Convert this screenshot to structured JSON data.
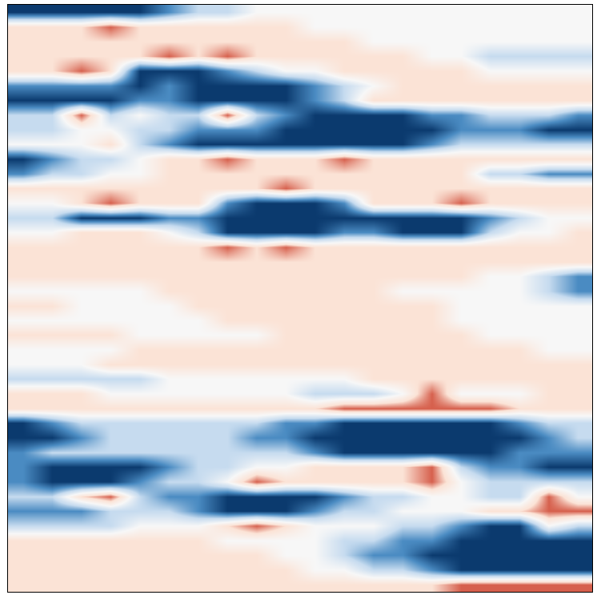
{
  "chart_data": {
    "type": "heatmap",
    "tick_labels": false,
    "zlim": [
      -2,
      3
    ],
    "cells": [
      [
        3,
        3,
        3,
        3,
        3,
        2,
        1,
        1,
        0,
        0,
        0,
        0,
        0,
        0,
        0,
        0,
        0,
        0,
        0,
        0
      ],
      [
        -1,
        -1,
        -1,
        -2,
        -1,
        -1,
        -1,
        -1,
        -1,
        -1,
        0,
        0,
        0,
        0,
        0,
        0,
        0,
        0,
        0,
        0
      ],
      [
        -1,
        -1,
        -1,
        -1,
        -1,
        -1,
        -1,
        -1,
        -1,
        -1,
        -1,
        -1,
        0,
        0,
        0,
        0,
        0,
        0,
        0,
        0
      ],
      [
        -1,
        -1,
        -1,
        -1,
        -1,
        -2,
        -1,
        -2,
        -1,
        -1,
        -1,
        -1,
        -1,
        -1,
        0,
        0,
        1,
        1,
        1,
        1
      ],
      [
        -1,
        -1,
        -2,
        -1,
        3,
        3,
        3,
        2,
        1,
        0,
        0,
        -1,
        -1,
        -1,
        -1,
        -1,
        0,
        0,
        0,
        0
      ],
      [
        2,
        2,
        2,
        2,
        3,
        2,
        3,
        3,
        3,
        3,
        2,
        1,
        0,
        -1,
        -1,
        -1,
        -1,
        -1,
        -1,
        -1
      ],
      [
        3,
        3,
        3,
        3,
        2,
        2,
        3,
        3,
        3,
        3,
        2,
        1,
        -1,
        -1,
        -1,
        -1,
        -1,
        -1,
        -1,
        -1
      ],
      [
        1,
        1,
        -2,
        1,
        0,
        1,
        1,
        -2,
        1,
        2,
        3,
        3,
        3,
        3,
        2,
        2,
        1,
        1,
        1,
        2
      ],
      [
        1,
        1,
        0,
        0,
        1,
        1,
        2,
        2,
        2,
        3,
        3,
        3,
        3,
        3,
        3,
        2,
        2,
        2,
        3,
        3
      ],
      [
        0,
        0,
        0,
        -1,
        1,
        2,
        3,
        3,
        3,
        3,
        3,
        3,
        3,
        3,
        2,
        1,
        1,
        1,
        1,
        1
      ],
      [
        3,
        2,
        1,
        1,
        0,
        -1,
        -1,
        -2,
        -1,
        -1,
        -1,
        -2,
        -1,
        -1,
        -1,
        -1,
        -1,
        -1,
        -1,
        -1
      ],
      [
        2,
        1,
        1,
        0,
        0,
        -1,
        -1,
        -1,
        -1,
        -1,
        -1,
        -1,
        -1,
        -1,
        -1,
        -1,
        1,
        1,
        2,
        2
      ],
      [
        -1,
        -1,
        -1,
        -1,
        -1,
        -1,
        -1,
        -1,
        -1,
        -2,
        -1,
        -1,
        -1,
        -1,
        -1,
        -1,
        -1,
        -1,
        -1,
        -1
      ],
      [
        0,
        0,
        -1,
        -2,
        -1,
        -1,
        -1,
        2,
        3,
        3,
        3,
        2,
        -1,
        -1,
        -1,
        -2,
        -1,
        -1,
        -1,
        -1
      ],
      [
        1,
        1,
        3,
        3,
        3,
        2,
        2,
        3,
        3,
        3,
        3,
        3,
        3,
        3,
        3,
        3,
        2,
        1,
        0,
        0
      ],
      [
        0,
        0,
        -1,
        -1,
        -1,
        0,
        1,
        3,
        3,
        3,
        3,
        2,
        2,
        3,
        3,
        3,
        1,
        0,
        0,
        -1
      ],
      [
        -1,
        -1,
        -1,
        -1,
        -1,
        -1,
        -1,
        -2,
        -1,
        -2,
        -1,
        -1,
        -1,
        -1,
        -1,
        -1,
        -1,
        -1,
        -1,
        -1
      ],
      [
        -1,
        -1,
        -1,
        -1,
        -1,
        -1,
        -1,
        -1,
        -1,
        -1,
        -1,
        -1,
        -1,
        -1,
        -1,
        -1,
        -1,
        -1,
        -1,
        -1
      ],
      [
        -1,
        -1,
        -1,
        -1,
        -1,
        -1,
        -1,
        -1,
        -1,
        -1,
        -1,
        -1,
        -1,
        -1,
        -1,
        -1,
        0,
        0,
        1,
        2
      ],
      [
        0,
        0,
        0,
        0,
        0,
        -1,
        -1,
        -1,
        -1,
        -1,
        -1,
        -1,
        -1,
        0,
        0,
        0,
        0,
        0,
        1,
        2
      ],
      [
        -1,
        -1,
        0,
        0,
        0,
        0,
        -1,
        -1,
        -1,
        -1,
        -1,
        -1,
        -1,
        -1,
        -1,
        0,
        0,
        0,
        0,
        0
      ],
      [
        0,
        0,
        0,
        0,
        0,
        0,
        0,
        -1,
        -1,
        -1,
        -1,
        -1,
        -1,
        -1,
        -1,
        0,
        0,
        0,
        0,
        0
      ],
      [
        -1,
        -1,
        -1,
        -1,
        0,
        0,
        0,
        0,
        0,
        -1,
        -1,
        -1,
        -1,
        -1,
        -1,
        -1,
        0,
        0,
        0,
        0
      ],
      [
        0,
        0,
        0,
        0,
        -1,
        -1,
        -1,
        -1,
        -1,
        -1,
        -1,
        -1,
        -1,
        -1,
        -1,
        -1,
        -1,
        -1,
        0,
        0
      ],
      [
        0,
        0,
        0,
        -1,
        -1,
        -1,
        -1,
        -1,
        -1,
        -1,
        -1,
        -1,
        -1,
        -1,
        -1,
        -1,
        -1,
        -1,
        -1,
        -1
      ],
      [
        1,
        1,
        1,
        1,
        1,
        0,
        0,
        0,
        0,
        0,
        0,
        0,
        -1,
        -1,
        -1,
        -1,
        -1,
        -1,
        -1,
        -1
      ],
      [
        -1,
        -1,
        -1,
        0,
        0,
        0,
        0,
        0,
        0,
        0,
        1,
        1,
        1,
        0,
        -2,
        0,
        0,
        0,
        -1,
        -1
      ],
      [
        -1,
        -1,
        -1,
        -1,
        -1,
        -1,
        -1,
        -1,
        -1,
        -1,
        -1,
        -2,
        -2,
        -2,
        -2,
        -2,
        -2,
        -1,
        -1,
        -1
      ],
      [
        3,
        2,
        1,
        1,
        1,
        1,
        1,
        1,
        1,
        2,
        2,
        3,
        3,
        3,
        3,
        3,
        3,
        2,
        1,
        1
      ],
      [
        3,
        3,
        2,
        1,
        1,
        1,
        1,
        1,
        2,
        2,
        3,
        3,
        3,
        3,
        3,
        3,
        3,
        3,
        2,
        1
      ],
      [
        2,
        1,
        1,
        1,
        1,
        1,
        1,
        1,
        1,
        1,
        2,
        3,
        3,
        3,
        3,
        3,
        3,
        2,
        2,
        2
      ],
      [
        2,
        3,
        3,
        3,
        3,
        2,
        1,
        1,
        0,
        0,
        -1,
        -1,
        -1,
        -1,
        -2,
        1,
        2,
        2,
        3,
        3
      ],
      [
        2,
        3,
        3,
        3,
        2,
        1,
        1,
        0,
        -2,
        -1,
        -1,
        -1,
        -1,
        -1,
        -2,
        0,
        1,
        1,
        1,
        1
      ],
      [
        1,
        1,
        -1,
        -2,
        1,
        2,
        2,
        3,
        3,
        3,
        3,
        2,
        1,
        1,
        0,
        0,
        1,
        1,
        -2,
        0
      ],
      [
        2,
        2,
        2,
        1,
        1,
        1,
        2,
        3,
        3,
        3,
        2,
        1,
        1,
        0,
        0,
        0,
        -1,
        -1,
        -2,
        -2
      ],
      [
        1,
        1,
        1,
        1,
        0,
        0,
        0,
        -1,
        -2,
        -1,
        0,
        0,
        0,
        1,
        1,
        2,
        3,
        3,
        0,
        1
      ],
      [
        -1,
        -1,
        -1,
        -1,
        -1,
        -1,
        -1,
        0,
        0,
        0,
        0,
        1,
        1,
        2,
        2,
        3,
        3,
        3,
        3,
        3
      ],
      [
        -1,
        -1,
        -1,
        -1,
        -1,
        -1,
        -1,
        -1,
        -1,
        0,
        0,
        1,
        2,
        2,
        3,
        3,
        3,
        3,
        3,
        3
      ],
      [
        -1,
        -1,
        -1,
        -1,
        -1,
        -1,
        -1,
        -1,
        -1,
        -1,
        0,
        0,
        1,
        1,
        2,
        3,
        3,
        3,
        3,
        3
      ],
      [
        -1,
        -1,
        -1,
        -1,
        -1,
        -1,
        -1,
        -1,
        -1,
        -1,
        -1,
        -1,
        -1,
        -1,
        -1,
        -2,
        -2,
        -2,
        -2,
        -2
      ]
    ]
  }
}
